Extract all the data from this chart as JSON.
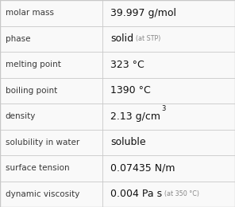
{
  "rows": [
    {
      "label": "molar mass",
      "value": "39.997 g/mol",
      "sup": null,
      "note": null
    },
    {
      "label": "phase",
      "value": "solid",
      "sup": null,
      "note": "(at STP)"
    },
    {
      "label": "melting point",
      "value": "323 °C",
      "sup": null,
      "note": null
    },
    {
      "label": "boiling point",
      "value": "1390 °C",
      "sup": null,
      "note": null
    },
    {
      "label": "density",
      "value": "2.13 g/cm",
      "sup": "3",
      "note": null
    },
    {
      "label": "solubility in water",
      "value": "soluble",
      "sup": null,
      "note": null
    },
    {
      "label": "surface tension",
      "value": "0.07435 N/m",
      "sup": null,
      "note": null
    },
    {
      "label": "dynamic viscosity",
      "value": "0.004 Pa s",
      "sup": null,
      "note": "(at 350 °C)"
    }
  ],
  "bg_color": "#f9f9f9",
  "line_color": "#c8c8c8",
  "label_color": "#383838",
  "value_color": "#111111",
  "note_color": "#888888",
  "label_fontsize": 7.5,
  "value_fontsize": 9.0,
  "note_fontsize": 5.8,
  "sup_fontsize": 6.0,
  "col_split": 0.435,
  "figw": 2.96,
  "figh": 2.6,
  "dpi": 100
}
